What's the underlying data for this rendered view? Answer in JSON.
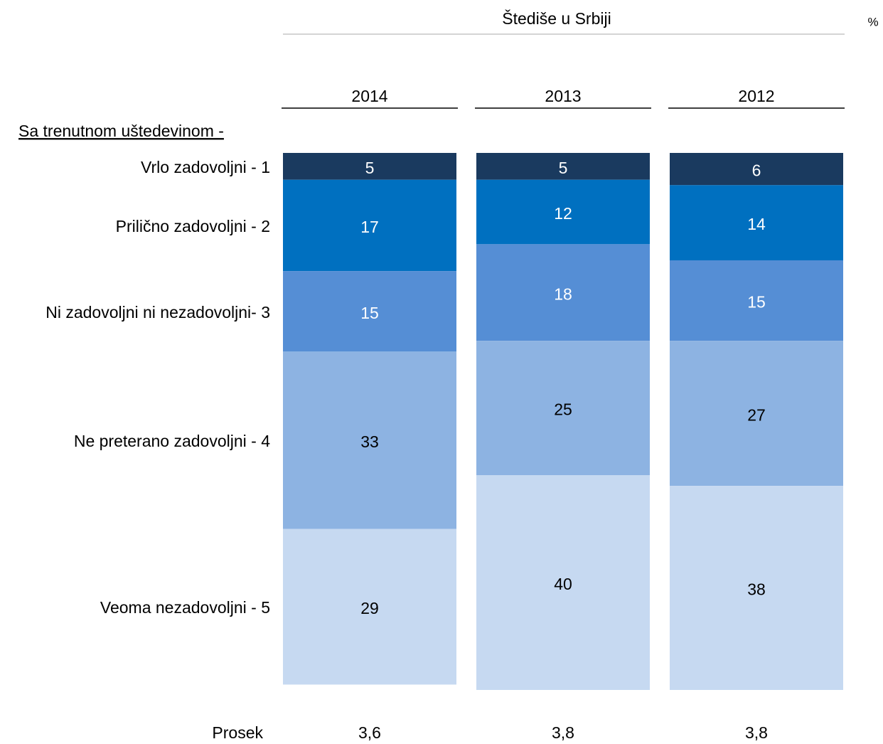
{
  "chart_data": {
    "type": "stacked_bar",
    "title": "Štediše u Srbiji",
    "unit": "%",
    "subtitle": "Sa trenutnom uštedevinom -",
    "categories": [
      "2014",
      "2013",
      "2012"
    ],
    "series": [
      {
        "name": "Vrlo zadovoljni - 1",
        "color": "#1a3a5f",
        "label_color": "#ffffff",
        "values": [
          5,
          5,
          6
        ]
      },
      {
        "name": "Prilično zadovoljni - 2",
        "color": "#0070c0",
        "label_color": "#ffffff",
        "values": [
          17,
          12,
          14
        ]
      },
      {
        "name": "Ni zadovoljni ni nezadovoljni- 3",
        "color": "#558ed5",
        "label_color": "#ffffff",
        "values": [
          15,
          18,
          15
        ]
      },
      {
        "name": "Ne preterano zadovoljni - 4",
        "color": "#8db3e2",
        "label_color": "#000000",
        "values": [
          33,
          25,
          27
        ]
      },
      {
        "name": "Veoma nezadovoljni - 5",
        "color": "#c6d9f1",
        "label_color": "#000000",
        "values": [
          29,
          40,
          38
        ]
      }
    ],
    "average_label": "Prosek",
    "averages": [
      3.6,
      3.8,
      3.8
    ],
    "average_labels": [
      "3,6",
      "3,8",
      "3,8"
    ]
  }
}
